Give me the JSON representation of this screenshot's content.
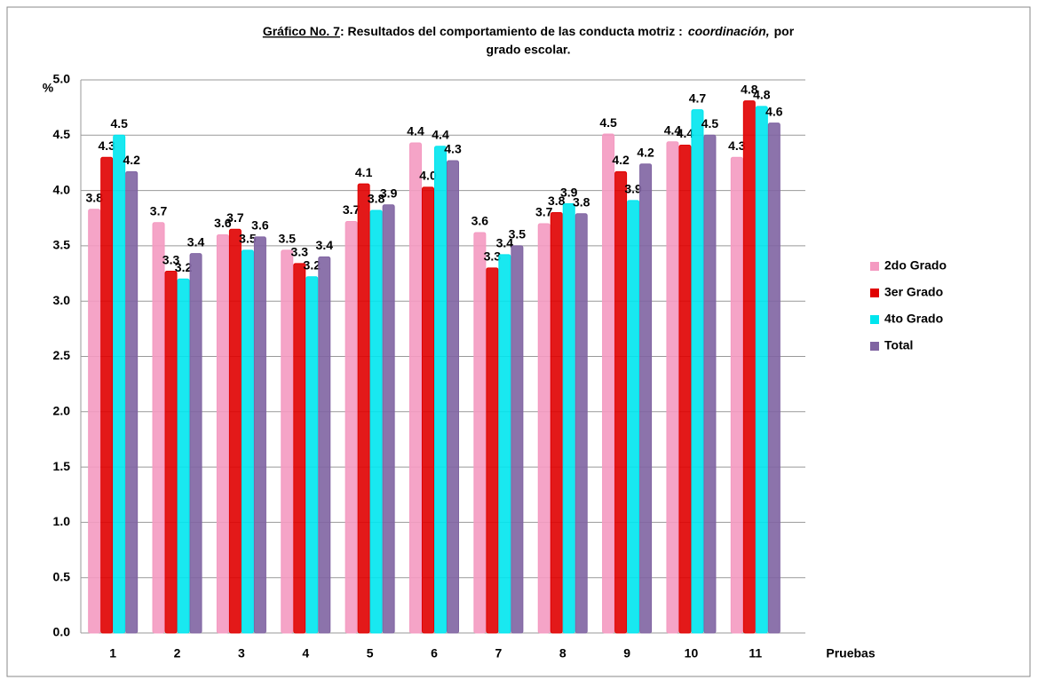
{
  "chart_data": {
    "type": "bar",
    "title": [
      "Gráfico No. 7",
      ": Resultados del comportamiento de las conducta motriz :",
      "coordinación,",
      "por",
      "grado escolar."
    ],
    "y_label": "%",
    "x_label": "Pruebas",
    "categories": [
      "1",
      "2",
      "3",
      "4",
      "5",
      "6",
      "7",
      "8",
      "9",
      "10",
      "11"
    ],
    "series": [
      {
        "name": "2do Grado",
        "color": "#f49ac1",
        "values": [
          3.83,
          3.71,
          3.6,
          3.46,
          3.72,
          4.43,
          3.62,
          3.7,
          4.51,
          4.44,
          4.3
        ],
        "value_labels": [
          "3.8",
          "3.7",
          "3.6",
          "3.5",
          "3.7",
          "4.4",
          "3.6",
          "3.7",
          "4.5",
          "4.4",
          "4.3"
        ]
      },
      {
        "name": "3er Grado",
        "color": "#e00000",
        "values": [
          4.3,
          3.27,
          3.65,
          3.34,
          4.06,
          4.03,
          3.3,
          3.8,
          4.17,
          4.41,
          4.81
        ],
        "value_labels": [
          "4.3",
          "3.3",
          "3.7",
          "3.3",
          "4.1",
          "4.0",
          "3.3",
          "3.8",
          "4.2",
          "4.4",
          "4.8"
        ]
      },
      {
        "name": "4to Grado",
        "color": "#00e5ee",
        "values": [
          4.5,
          3.2,
          3.46,
          3.22,
          3.82,
          4.4,
          3.42,
          3.88,
          3.91,
          4.73,
          4.76
        ],
        "value_labels": [
          "4.5",
          "3.2",
          "3.5",
          "3.2",
          "3.8",
          "4.4",
          "3.4",
          "3.9",
          "3.9",
          "4.7",
          "4.8"
        ]
      },
      {
        "name": "Total",
        "color": "#8064a2",
        "values": [
          4.17,
          3.43,
          3.58,
          3.4,
          3.87,
          4.27,
          3.5,
          3.79,
          4.24,
          4.5,
          4.61
        ],
        "value_labels": [
          "4.2",
          "3.4",
          "3.6",
          "3.4",
          "3.9",
          "4.3",
          "3.5",
          "3.8",
          "4.2",
          "4.5",
          "4.6"
        ]
      }
    ],
    "ylim": [
      0,
      5
    ],
    "yticks": [
      {
        "value": 0,
        "label": "0.0"
      },
      0.5,
      {
        "value": 1,
        "label": "1.0"
      },
      1.5,
      {
        "value": 2,
        "label": "2.0"
      },
      2.5,
      {
        "value": 3,
        "label": "3.0"
      },
      3.5,
      {
        "value": 4,
        "label": "4.0"
      },
      4.5,
      {
        "value": 5,
        "label": "5.0"
      }
    ],
    "grid": true,
    "legend": "right"
  }
}
